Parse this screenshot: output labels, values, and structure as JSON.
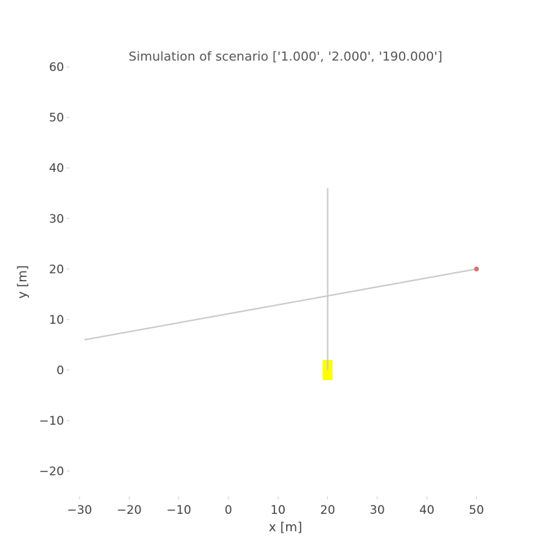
{
  "chart_data": {
    "type": "line",
    "title": "Simulation of scenario ['1.000', '2.000', '190.000']",
    "xlabel": "x [m]",
    "ylabel": "y [m]",
    "xlim": [
      -32,
      55
    ],
    "ylim": [
      -25,
      60
    ],
    "xticks": [
      -30,
      -20,
      -10,
      0,
      10,
      20,
      30,
      40,
      50
    ],
    "yticks": [
      -20,
      -10,
      0,
      10,
      20,
      30,
      40,
      50,
      60
    ],
    "xtick_labels": [
      "−30",
      "−20",
      "−10",
      "0",
      "10",
      "20",
      "30",
      "40",
      "50"
    ],
    "ytick_labels": [
      "−20",
      "−10",
      "0",
      "10",
      "20",
      "30",
      "40",
      "50",
      "60"
    ],
    "grid": false,
    "series": [
      {
        "x": [
          -29,
          50
        ],
        "y": [
          6,
          20
        ],
        "color": "#c8c8c8"
      },
      {
        "x": [
          20,
          20
        ],
        "y": [
          0,
          36
        ],
        "color": "#c8c8c8"
      }
    ],
    "points": [
      {
        "x": 50,
        "y": 20,
        "color": "#e07070"
      }
    ],
    "rects": [
      {
        "x0": 19,
        "x1": 21,
        "y0": -2,
        "y1": 2,
        "color": "#ffff00"
      }
    ]
  }
}
